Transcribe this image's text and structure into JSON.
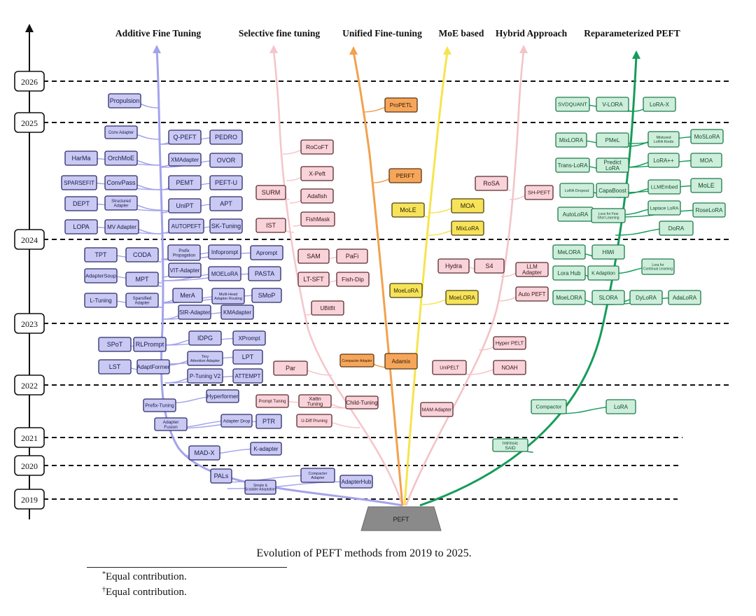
{
  "caption": "Evolution of PEFT methods from 2019 to 2025.",
  "footnotes": [
    {
      "mark": "*",
      "text": "Equal contribution."
    },
    {
      "mark": "†",
      "text": "Equal contribution."
    }
  ],
  "root_label": "PEFT",
  "years": [
    "2026",
    "2025",
    "2024",
    "2023",
    "2022",
    "2021",
    "2020",
    "2019"
  ],
  "colors": {
    "additive": "#a3a3ec",
    "selective": "#f4c6cc",
    "unified": "#f2a14e",
    "moe": "#f6e44e",
    "hybrid": "#f3c4c7",
    "reparam": "#169c5a"
  },
  "branches": [
    {
      "id": "additive",
      "title": "Additive Fine Tuning"
    },
    {
      "id": "selective",
      "title": "Selective fine tuning"
    },
    {
      "id": "unified",
      "title": "Unified Fine-tuning"
    },
    {
      "id": "moe",
      "title": "MoE based"
    },
    {
      "id": "hybrid",
      "title": "Hybrid Approach"
    },
    {
      "id": "reparam",
      "title": "Reparameterized PEFT"
    }
  ],
  "methods": {
    "additive": [
      "Propulsion",
      "Conv Adapter",
      "Q-PEFT",
      "PEDRO",
      "HarMa",
      "OrchMoE",
      "XMAdapter",
      "OVOR",
      "SPARSEFIT",
      "ConvPass",
      "PEMT",
      "PEFT-U",
      "DEPT",
      "Structured Adapter",
      "UniPT",
      "APT",
      "LOPA",
      "MV Adapter",
      "AUTOPEFT",
      "SK-Tuning",
      "TPT",
      "CODA",
      "Prefix Propagation",
      "Infoprompt",
      "Aprompt",
      "AdapterSoup",
      "MPT",
      "VIT-Adapter",
      "MOELoRA",
      "PASTA",
      "L-Tuning",
      "Sparsified Adapter",
      "MerA",
      "Multi-Head Adapter Routing",
      "SMoP",
      "SIR-Adapter",
      "KMAdapter",
      "IDPG",
      "XPrompt",
      "SPoT",
      "RLPrompt",
      "Tiny Attention Adapter",
      "LPT",
      "LST",
      "AdaptFormer",
      "P-Tuning V2",
      "ATTEMPT",
      "Hyperformer",
      "Prefix-Tuning",
      "Adapter Fusion",
      "Adapter Drop",
      "PTR",
      "MAD-X",
      "K-adapter",
      "PALs",
      "Simple & Scalable Adaptation",
      "Compacter Adapter",
      "AdapterHub"
    ],
    "selective": [
      "RoCoFT",
      "X-Peft",
      "SURM",
      "Adafish",
      "IST",
      "FishMask",
      "SAM",
      "PaFi",
      "LT-SFT",
      "Fish-Dip",
      "UBitfit",
      "Par",
      "Xattn Tuning",
      "Child-Tuning",
      "U-Diff Pruning",
      "Prompt Tuning"
    ],
    "unified": [
      "ProPETL",
      "PERFT",
      "Compacter Adapter",
      "Adamix"
    ],
    "moe": [
      "MoLE",
      "MOA",
      "MixLoRA",
      "MoeLoRA",
      "MoeLORA"
    ],
    "hybrid": [
      "RoSA",
      "SH-PEFT",
      "Hydra",
      "S4",
      "LLM Adapter",
      "Auto PEFT",
      "Hyper PELT",
      "UniPELT",
      "NOAH",
      "MAM Adapter"
    ],
    "reparam": [
      "SVDQUANT",
      "V-LORA",
      "LoRA-X",
      "MixLORA",
      "PMeL",
      "Mixtured LoRA Kinds",
      "MoSLoRA",
      "Trans-LoRA",
      "Predict LoRA",
      "LoRA++",
      "MOA",
      "LoRA Dropout",
      "CapaBoost",
      "LLMEmbed",
      "MoLE",
      "AutoLoRA",
      "Loss for Few Shot Learning",
      "Laplace LoRA",
      "RoseLoRA",
      "DoRA",
      "MeLORA",
      "HiWi",
      "Lora Hub",
      "K Adaption",
      "Lora for Continual Learning",
      "MoeLORA",
      "SLORA",
      "DyLoRA",
      "AdaLoRA",
      "Compactor",
      "LoRA",
      "Intrinsic SAID"
    ]
  }
}
